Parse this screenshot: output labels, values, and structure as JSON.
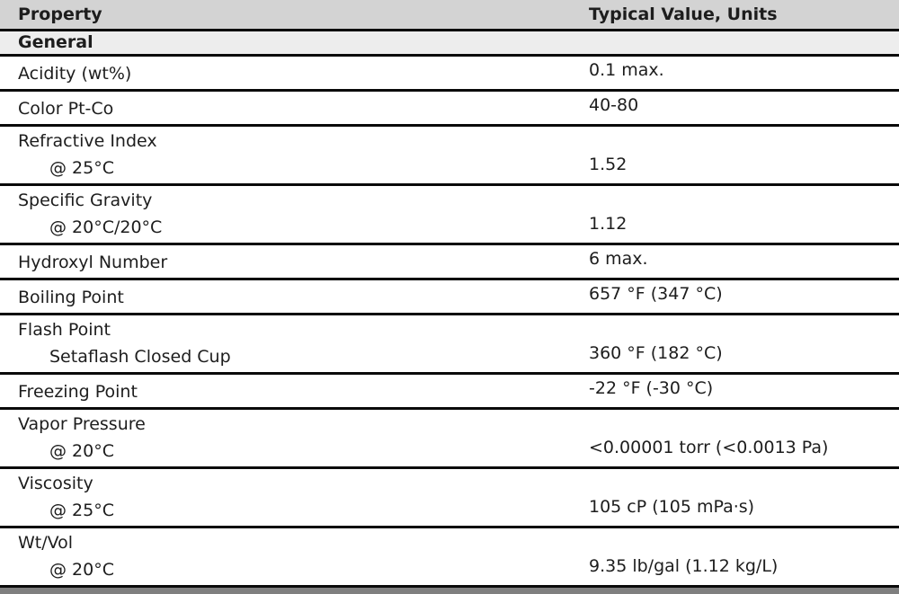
{
  "table": {
    "columns": [
      "Property",
      "Typical Value, Units"
    ],
    "section": "General",
    "rows": [
      {
        "property": "Acidity (wt%)",
        "condition": "",
        "value": "0.1 max."
      },
      {
        "property": "Color Pt-Co",
        "condition": "",
        "value": "40-80"
      },
      {
        "property": "Refractive Index",
        "condition": "@ 25°C",
        "value": "1.52"
      },
      {
        "property": "Specific Gravity",
        "condition": "@ 20°C/20°C",
        "value": "1.12"
      },
      {
        "property": "Hydroxyl Number",
        "condition": "",
        "value": "6 max."
      },
      {
        "property": "Boiling Point",
        "condition": "",
        "value": "657 °F (347 °C)"
      },
      {
        "property": "Flash Point",
        "condition": "Setaflash Closed Cup",
        "value": "360 °F (182 °C)"
      },
      {
        "property": "Freezing Point",
        "condition": "",
        "value": "-22 °F (-30 °C)"
      },
      {
        "property": "Vapor Pressure",
        "condition": "@ 20°C",
        "value": "<0.00001 torr (<0.0013 Pa)"
      },
      {
        "property": "Viscosity",
        "condition": "@ 25°C",
        "value": "105 cP (105 mPa·s)"
      },
      {
        "property": "Wt/Vol",
        "condition": "@ 20°C",
        "value": "9.35 lb/gal (1.12 kg/L)"
      }
    ]
  },
  "colors": {
    "header_bg": "#d3d3d3",
    "section_bg": "#ededed",
    "line": "#0a0a0a",
    "text": "#1d1d1d",
    "next_section_strip": "#7f7f7f"
  }
}
